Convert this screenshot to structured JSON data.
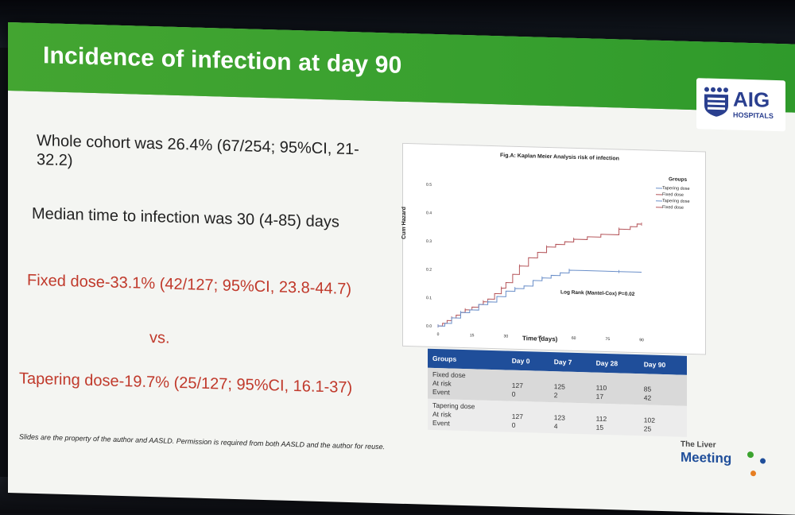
{
  "slide": {
    "title": "Incidence of infection at day 90",
    "logo": {
      "name": "AIG",
      "subtitle": "HOSPITALS"
    },
    "bullets": [
      {
        "text": "Whole cohort was 26.4% (67/254; 95%CI, 21-32.2)",
        "color": "#222222"
      },
      {
        "text": "Median time to infection was 30 (4-85) days",
        "color": "#222222"
      },
      {
        "text": "Fixed dose-33.1% (42/127; 95%CI, 23.8-44.7)",
        "color": "#c0392b"
      },
      {
        "text": "vs.",
        "color": "#c0392b"
      },
      {
        "text": "Tapering dose-19.7% (25/127; 95%CI, 16.1-37)",
        "color": "#c0392b"
      }
    ],
    "footer": "Slides are the property of the author and AASLD. Permission is required from both AASLD and the author for reuse.",
    "event_logo": {
      "top": "The Liver",
      "main": "Meeting"
    },
    "header_color": "#3ba32f"
  },
  "chart_data": {
    "type": "line",
    "title": "Fig.A: Kaplan Meier Analysis risk of infection",
    "xlabel": "Time (days)",
    "ylabel": "Cum Hazard",
    "x_ticks": [
      0,
      15,
      30,
      45,
      60,
      75,
      90
    ],
    "y_ticks": [
      "0.0",
      "0.1",
      "0.2",
      "0.3",
      "0.4",
      "0.5"
    ],
    "xlim": [
      0,
      90
    ],
    "ylim": [
      0,
      0.5
    ],
    "annotation": "Log Rank (Mantel-Cox) P=0.02",
    "legend_title": "Groups",
    "legend": [
      "Tapering dose",
      "Fixed dose",
      "Tapering dose-censored",
      "Fixed dose-censored"
    ],
    "legend_labels": [
      "Tapering dose",
      "Fixed dose",
      "Tapering dose",
      "Fixed dose"
    ],
    "series": [
      {
        "name": "Fixed dose",
        "color": "#b5555a",
        "points": [
          [
            0,
            0
          ],
          [
            2,
            0.01
          ],
          [
            4,
            0.02
          ],
          [
            6,
            0.03
          ],
          [
            8,
            0.04
          ],
          [
            10,
            0.05
          ],
          [
            12,
            0.06
          ],
          [
            15,
            0.07
          ],
          [
            18,
            0.08
          ],
          [
            20,
            0.09
          ],
          [
            22,
            0.1
          ],
          [
            25,
            0.12
          ],
          [
            28,
            0.14
          ],
          [
            30,
            0.16
          ],
          [
            33,
            0.19
          ],
          [
            36,
            0.22
          ],
          [
            40,
            0.25
          ],
          [
            44,
            0.27
          ],
          [
            48,
            0.29
          ],
          [
            52,
            0.3
          ],
          [
            56,
            0.31
          ],
          [
            60,
            0.32
          ],
          [
            66,
            0.33
          ],
          [
            72,
            0.34
          ],
          [
            80,
            0.36
          ],
          [
            85,
            0.37
          ],
          [
            88,
            0.38
          ],
          [
            90,
            0.38
          ]
        ]
      },
      {
        "name": "Tapering dose",
        "color": "#6a8fc9",
        "points": [
          [
            0,
            0
          ],
          [
            3,
            0.01
          ],
          [
            6,
            0.03
          ],
          [
            10,
            0.05
          ],
          [
            14,
            0.06
          ],
          [
            18,
            0.08
          ],
          [
            22,
            0.09
          ],
          [
            26,
            0.11
          ],
          [
            30,
            0.13
          ],
          [
            34,
            0.14
          ],
          [
            38,
            0.15
          ],
          [
            42,
            0.17
          ],
          [
            46,
            0.18
          ],
          [
            50,
            0.19
          ],
          [
            54,
            0.2
          ],
          [
            58,
            0.21
          ],
          [
            64,
            0.21
          ],
          [
            70,
            0.21
          ],
          [
            80,
            0.21
          ],
          [
            90,
            0.21
          ]
        ]
      }
    ]
  },
  "risk_table": {
    "headers": [
      "Groups",
      "Day 0",
      "Day 7",
      "Day 28",
      "Day 90"
    ],
    "rows": [
      {
        "group_lines": [
          "Fixed dose",
          "At risk",
          "Event"
        ],
        "at_risk": [
          "127",
          "125",
          "110",
          "85"
        ],
        "events": [
          "0",
          "2",
          "17",
          "42"
        ]
      },
      {
        "group_lines": [
          "Tapering dose",
          "At risk",
          "Event"
        ],
        "at_risk": [
          "127",
          "123",
          "112",
          "102"
        ],
        "events": [
          "0",
          "4",
          "15",
          "25"
        ]
      }
    ]
  }
}
